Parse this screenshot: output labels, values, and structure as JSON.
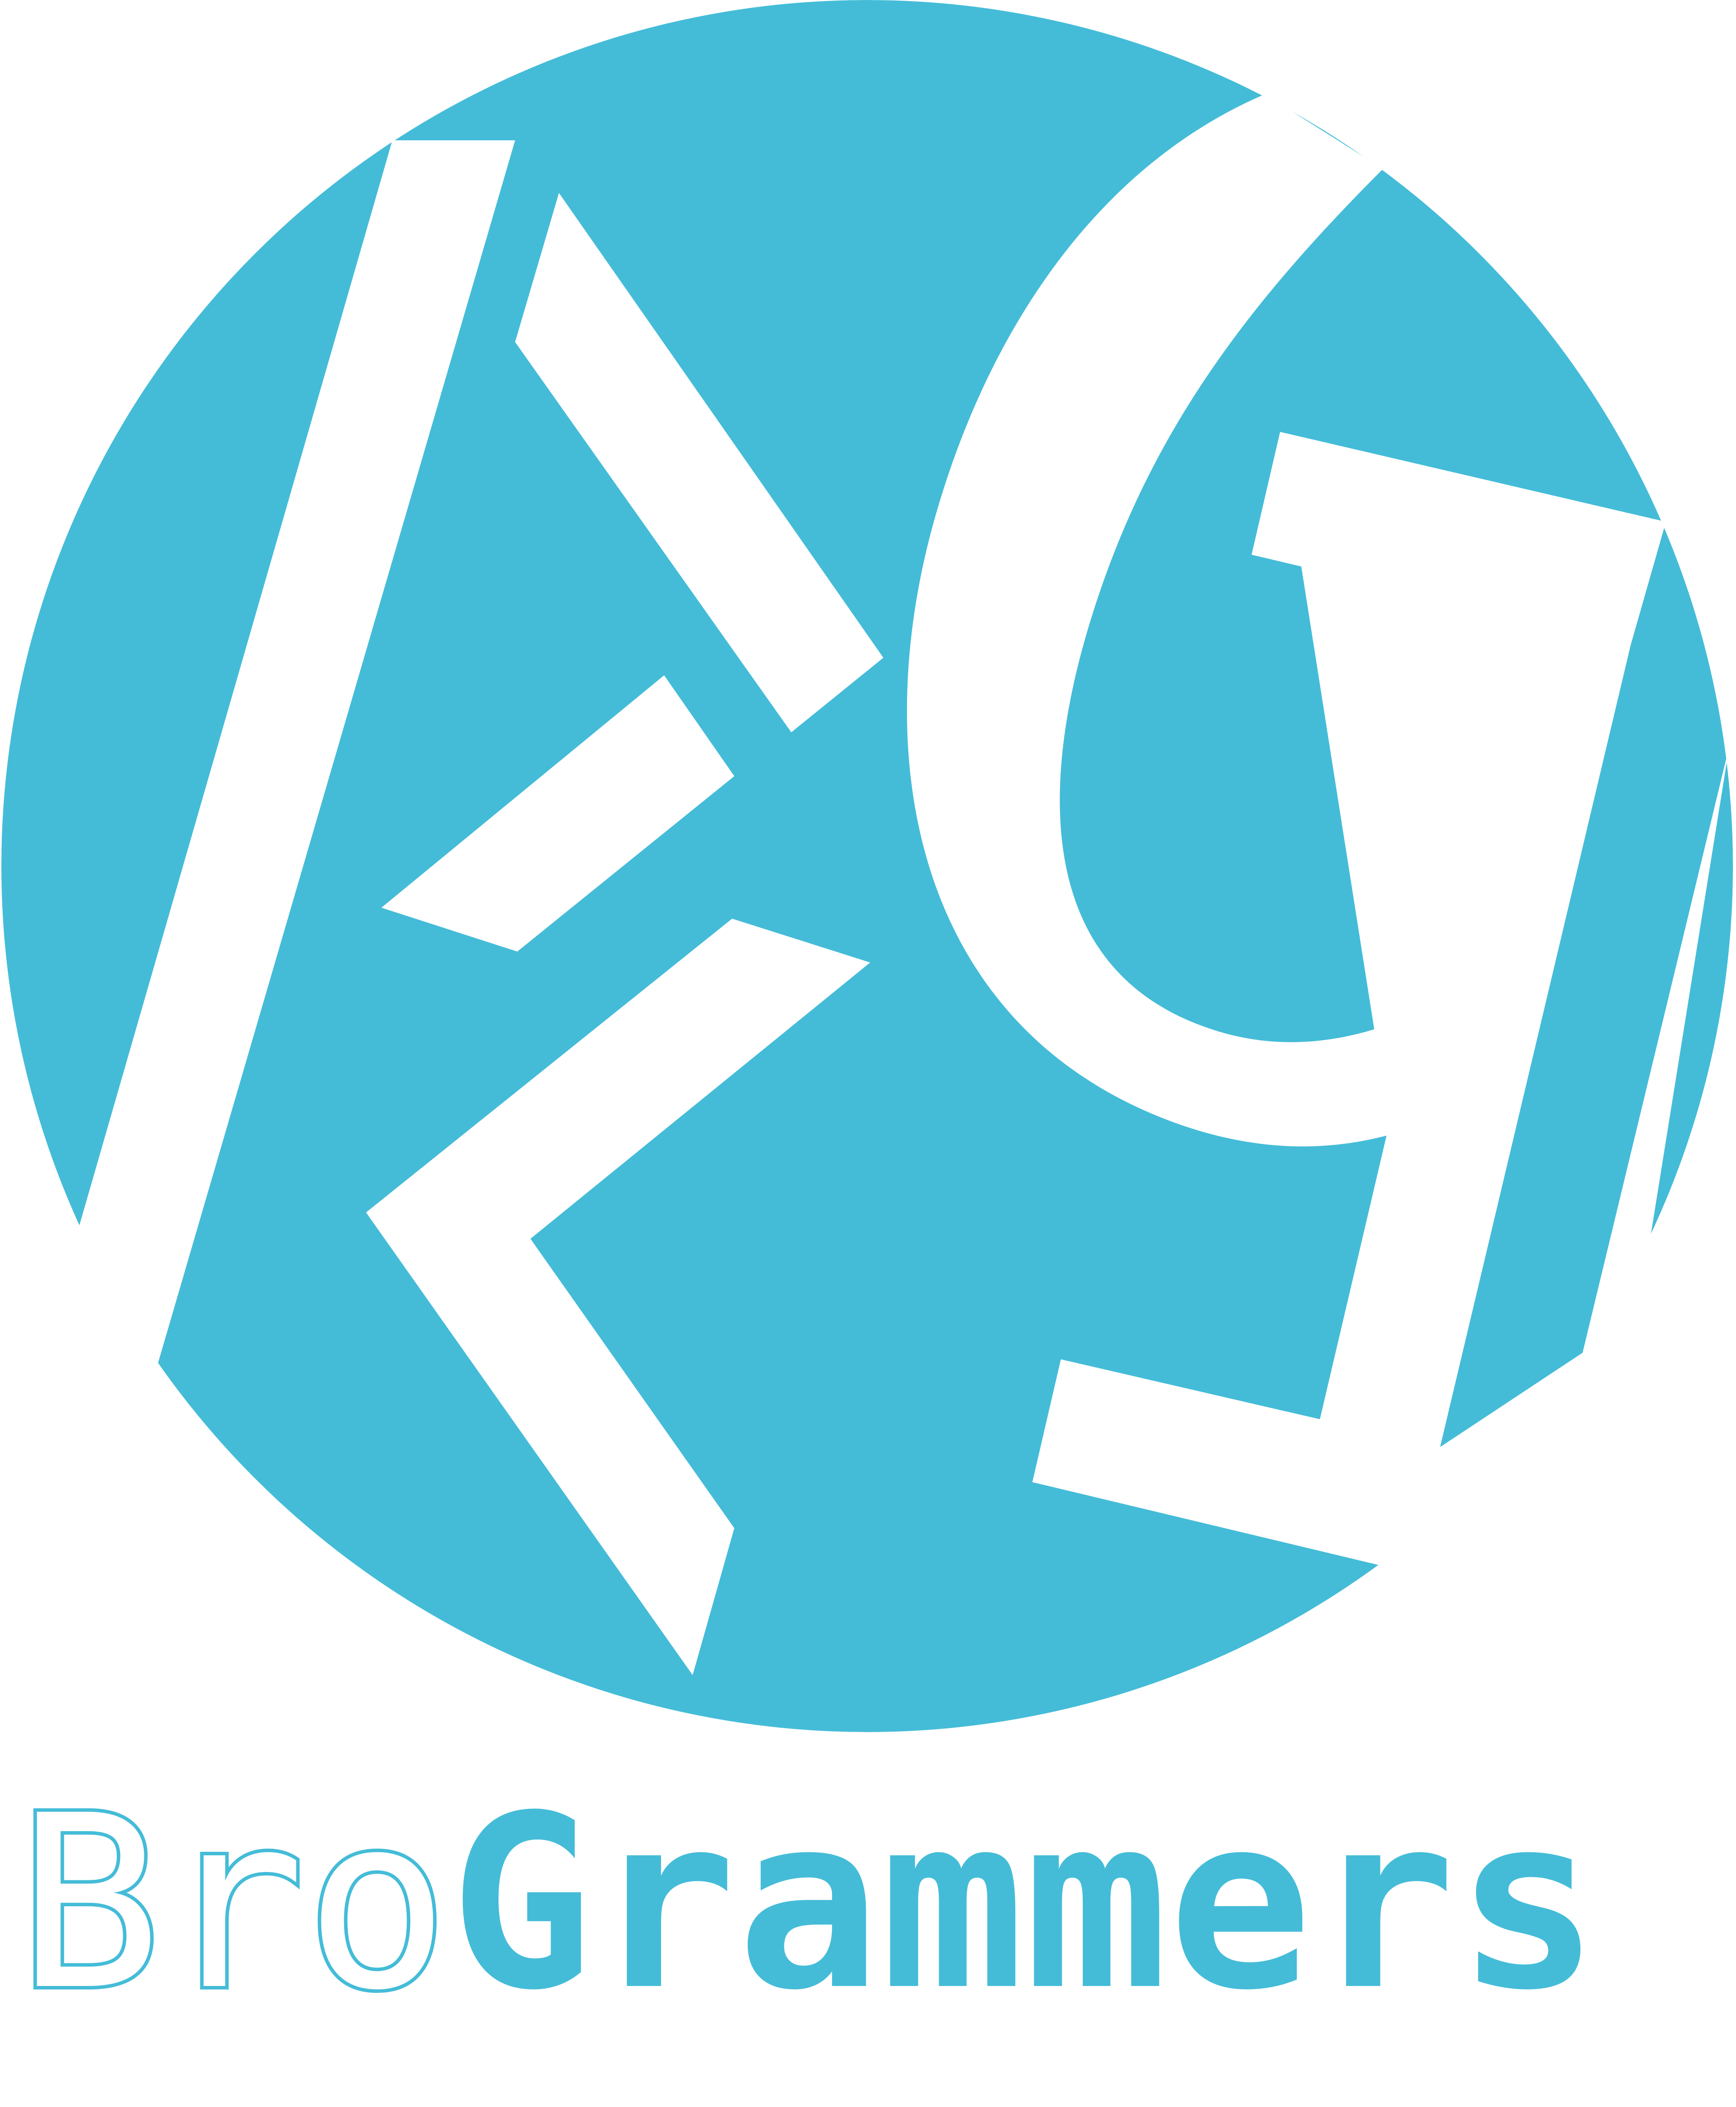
{
  "brand": {
    "accent_color": "#44BCD8",
    "background_color": "#FFFFFF",
    "logo_icon": "brogrammers-circle-monogram-icon",
    "wordmark": {
      "outlined_part": "Bro",
      "solid_part": "Grammers"
    }
  }
}
